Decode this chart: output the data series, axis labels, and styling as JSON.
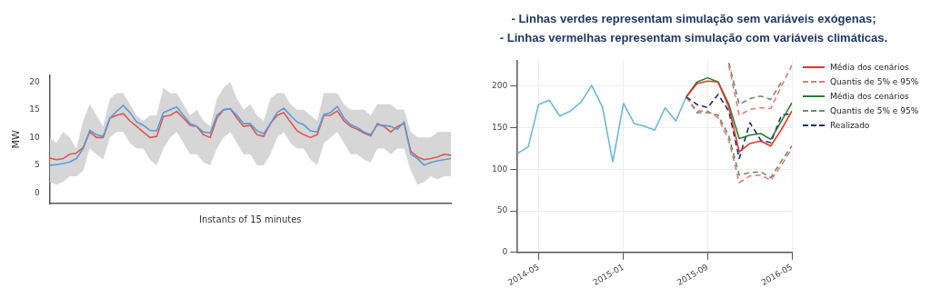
{
  "chart_data": [
    {
      "type": "line",
      "xlabel": "Instants of 15 minutes",
      "ylabel": "MW",
      "categories": [
        null,
        null,
        null,
        null,
        null,
        null,
        null,
        null,
        null,
        null,
        null,
        null,
        null,
        null,
        null,
        null,
        null,
        null,
        null,
        null,
        null,
        null,
        null,
        null,
        null,
        null,
        null,
        null,
        null,
        null,
        null,
        null,
        null,
        null,
        null,
        null,
        null,
        null,
        null,
        null,
        null,
        null,
        null,
        null,
        null,
        null,
        null,
        null,
        null,
        null,
        null,
        null,
        null,
        null,
        null,
        null,
        null,
        null,
        null,
        null,
        null
      ],
      "ylim": [
        -1.9,
        21.3
      ],
      "yticks": [
        0,
        5,
        10,
        15,
        20
      ],
      "grid": false,
      "legend": false,
      "marker": "none",
      "tick_labels": "y",
      "series": [
        {
          "color": "#5b9bd5",
          "values": [
            5.0,
            5.1,
            5.3,
            5.6,
            6.2,
            8.0,
            11.3,
            10.5,
            10.2,
            13.5,
            14.7,
            15.8,
            14.5,
            12.8,
            12.2,
            11.3,
            11.2,
            14.5,
            15.0,
            15.5,
            14.0,
            12.5,
            12.0,
            11.0,
            10.8,
            14.0,
            15.0,
            15.2,
            14.0,
            12.5,
            12.5,
            11.2,
            10.7,
            12.5,
            14.5,
            15.3,
            14.0,
            12.8,
            12.3,
            11.2,
            11.0,
            14.2,
            14.5,
            15.6,
            13.5,
            12.3,
            11.8,
            11.0,
            10.5,
            12.3,
            12.2,
            12.0,
            11.5,
            12.8,
            7.0,
            6.2,
            5.0,
            5.5,
            5.8,
            6.0,
            6.2
          ],
          "lower": [
            2,
            1.5,
            2,
            3,
            3,
            4,
            8,
            7,
            6,
            10,
            11,
            11,
            9,
            8,
            8,
            6,
            5,
            8,
            10,
            11,
            9,
            7,
            7,
            5.5,
            5,
            8,
            10,
            11,
            9,
            7,
            7,
            5,
            5,
            7,
            10,
            11,
            9,
            8,
            8,
            6,
            5,
            9,
            10,
            11,
            9,
            7,
            7,
            6,
            5.5,
            8,
            8,
            7,
            8,
            8,
            4,
            1.5,
            2,
            3,
            2.5,
            3,
            3
          ],
          "upper": [
            10,
            9,
            11,
            10,
            8,
            13,
            16,
            14,
            12,
            17,
            18,
            18,
            16,
            14,
            13,
            14,
            14,
            19,
            18,
            18,
            16,
            14,
            15,
            13,
            12,
            17,
            19,
            20,
            17,
            15,
            16,
            14,
            13,
            17,
            18,
            18,
            16,
            15,
            15,
            14,
            13,
            18,
            18,
            18,
            16,
            15,
            15,
            15,
            14,
            16,
            16,
            16,
            15,
            15,
            11,
            10,
            10,
            10,
            11,
            11,
            11
          ]
        },
        {
          "color": "#e05555",
          "values": [
            6.3,
            6.0,
            6.2,
            7.0,
            7.2,
            8.2,
            11.0,
            10.0,
            10.0,
            13.5,
            14.0,
            14.3,
            13.0,
            12.0,
            11.0,
            10.0,
            10.2,
            13.8,
            14.0,
            14.7,
            13.5,
            12.2,
            12.0,
            10.5,
            10.0,
            13.5,
            15.0,
            15.2,
            13.5,
            12.0,
            12.2,
            10.5,
            10.2,
            12.5,
            14.0,
            14.5,
            12.8,
            11.2,
            10.5,
            10.0,
            10.5,
            14.0,
            14.0,
            14.8,
            13.0,
            12.0,
            11.5,
            10.8,
            10.3,
            12.5,
            12.0,
            11.0,
            12.0,
            12.5,
            7.5,
            6.5,
            6.0,
            6.2,
            6.5,
            7.0,
            6.8
          ]
        }
      ]
    },
    {
      "type": "line",
      "annotations": [
        "- Linhas verdes representam simulação sem variáveis exógenas;",
        "- Linhas vermelhas representam simulação com variáveis climáticas."
      ],
      "xlim": [
        "2014-03",
        "2016-05"
      ],
      "xticks": [
        "2014-05",
        "2015-01",
        "2015-09",
        "2016-05"
      ],
      "ylim": [
        0,
        231
      ],
      "yticks": [
        0,
        50,
        100,
        150,
        200
      ],
      "grid": true,
      "legend": "right",
      "marker": "none",
      "series": [
        {
          "name": "Média dos cenários",
          "color": "#e8312c",
          "x": [
            "2015-07",
            "2015-08",
            "2015-09",
            "2015-10",
            "2015-11",
            "2015-12",
            "2016-01",
            "2016-02",
            "2016-03",
            "2016-04",
            "2016-05"
          ],
          "values": [
            187,
            203,
            206,
            205,
            175,
            121,
            131,
            134,
            128,
            148,
            170
          ]
        },
        {
          "name": "Quantis de 5% e 95%",
          "color": "#e07b78",
          "line_style": "dashed",
          "x": [
            "2015-11",
            "2015-12",
            "2016-01",
            "2016-02",
            "2016-03",
            "2016-04",
            "2016-05"
          ],
          "values": [
            225,
            165,
            172,
            174,
            173,
            200,
            225
          ]
        },
        {
          "name": "Média dos cenários",
          "color": "#2a7d32",
          "x": [
            "2015-07",
            "2015-08",
            "2015-09",
            "2015-10",
            "2015-11",
            "2015-12",
            "2016-01",
            "2016-02",
            "2016-03",
            "2016-04",
            "2016-05"
          ],
          "values": [
            187,
            205,
            210,
            205,
            178,
            137,
            141,
            143,
            136,
            158,
            180
          ]
        },
        {
          "name": "Quantis de 5% e 95%",
          "color": "#6b8f6b",
          "line_style": "dashed",
          "x": [
            "2015-11",
            "2015-12",
            "2016-01",
            "2016-02",
            "2016-03",
            "2016-04"
          ],
          "values": [
            228,
            178,
            185,
            188,
            184,
            205
          ]
        },
        {
          "name": "Realizado",
          "color": "#1f2a6b",
          "line_style": "dashed",
          "x": [
            "2015-07",
            "2015-08",
            "2015-09",
            "2015-10",
            "2015-11",
            "2015-12",
            "2016-01",
            "2016-02",
            "2016-03",
            "2016-04",
            "2016-05"
          ],
          "values": [
            187,
            178,
            174,
            190,
            170,
            113,
            156,
            135,
            132,
            165,
            167
          ]
        },
        {
          "color": "#e07b78",
          "line_style": "dashed",
          "x": [
            "2015-07",
            "2015-08",
            "2015-09",
            "2015-10",
            "2015-11",
            "2015-12",
            "2016-01",
            "2016-02",
            "2016-03",
            "2016-04",
            "2016-05"
          ],
          "values": [
            187,
            170,
            170,
            162,
            135,
            84,
            92,
            93,
            87,
            105,
            125
          ]
        },
        {
          "color": "#6b8f6b",
          "line_style": "dashed",
          "x": [
            "2015-07",
            "2015-08",
            "2015-09",
            "2015-10",
            "2015-11",
            "2015-12",
            "2016-01",
            "2016-02",
            "2016-03",
            "2016-04",
            "2016-05"
          ],
          "values": [
            187,
            168,
            168,
            165,
            140,
            93,
            96,
            97,
            90,
            110,
            128
          ]
        },
        {
          "color": "#6bb8d8",
          "x": [
            "2014-03",
            "2014-04",
            "2014-05",
            "2014-06",
            "2014-07",
            "2014-08",
            "2014-09",
            "2014-10",
            "2014-11",
            "2014-12",
            "2015-01",
            "2015-02",
            "2015-03",
            "2015-04",
            "2015-05",
            "2015-06",
            "2015-07"
          ],
          "values": [
            119,
            127,
            178,
            183,
            164,
            170,
            181,
            201,
            175,
            109,
            179,
            155,
            152,
            147,
            174,
            158,
            187
          ]
        }
      ]
    }
  ]
}
